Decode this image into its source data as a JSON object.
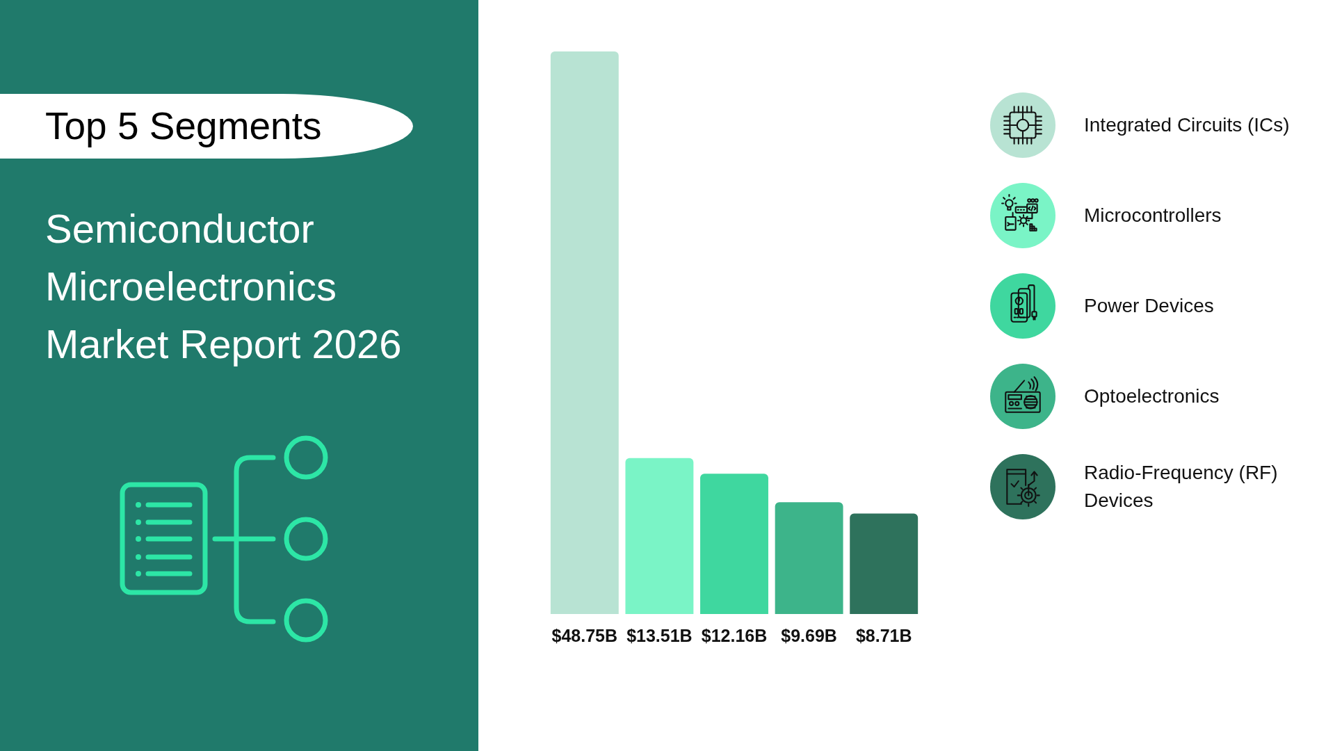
{
  "chart_data": {
    "type": "bar",
    "title": "Top 5 Segments",
    "subtitle": "Semiconductor Microelectronics Market Report 2026",
    "categories": [
      null
    ],
    "series": [
      {
        "name": "Integrated Circuits (ICs)",
        "color": "#b8e3d3",
        "values": [
          48.75
        ],
        "value_labels": [
          "$48.75B"
        ]
      },
      {
        "name": "Microcontrollers",
        "color": "#7af4c6",
        "values": [
          13.51
        ],
        "value_labels": [
          "$13.51B"
        ]
      },
      {
        "name": "Power Devices",
        "color": "#3fd79f",
        "values": [
          12.16
        ],
        "value_labels": [
          "$12.16B"
        ]
      },
      {
        "name": "Optoelectronics",
        "color": "#3db48a",
        "values": [
          9.69
        ],
        "value_labels": [
          "$9.69B"
        ]
      },
      {
        "name": "Radio-Frequency (RF) Devices",
        "color": "#2e725c",
        "values": [
          8.71
        ],
        "value_labels": [
          "$8.71B"
        ]
      }
    ],
    "ylim": [
      0,
      48.75
    ],
    "legend": "right",
    "tick_labels": false
  }
}
